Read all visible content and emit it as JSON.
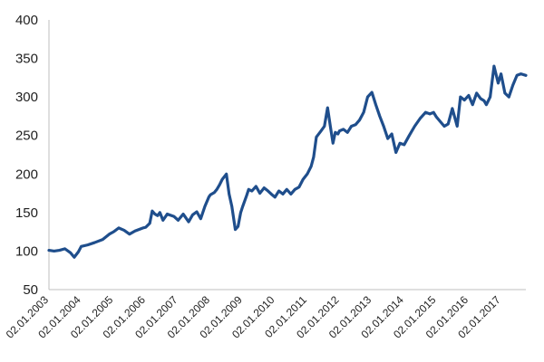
{
  "colors": {
    "series": "#1f4e8c",
    "axis": "#bfbfbf",
    "text": "#1f1f1f",
    "background": "#ffffff"
  },
  "chart_data": {
    "type": "line",
    "title": "",
    "xlabel": "",
    "ylabel": "",
    "ylim": [
      50,
      400
    ],
    "grid": false,
    "legend": "none",
    "y_ticks": [
      50,
      100,
      150,
      200,
      250,
      300,
      350,
      400
    ],
    "y_tick_labels": [
      "50",
      "100",
      "150",
      "200",
      "250",
      "300",
      "350",
      "400"
    ],
    "x_ticks": [
      "2003-01-02",
      "2004-01-02",
      "2005-01-02",
      "2006-01-02",
      "2007-01-02",
      "2008-01-02",
      "2009-01-02",
      "2010-01-02",
      "2011-01-02",
      "2012-01-02",
      "2013-01-02",
      "2014-01-02",
      "2015-01-02",
      "2016-01-02",
      "2017-01-02"
    ],
    "x_tick_labels": [
      "02.01.2003",
      "02.01.2004",
      "02.01.2005",
      "02.01.2006",
      "02.01.2007",
      "02.01.2008",
      "02.01.2009",
      "02.01.2010",
      "02.01.2011",
      "02.01.2012",
      "02.01.2013",
      "02.01.2014",
      "02.01.2015",
      "02.01.2016",
      "02.01.2017"
    ],
    "xlim": [
      "2003-01-02",
      "2017-10-10"
    ],
    "series": [
      {
        "x": [
          "2003-01-02",
          "2003-03-01",
          "2003-05-01",
          "2003-07-01",
          "2003-09-01",
          "2003-10-15",
          "2003-12-01",
          "2004-01-02",
          "2004-03-15",
          "2004-06-01",
          "2004-09-01",
          "2004-11-15",
          "2005-01-02",
          "2005-03-01",
          "2005-05-01",
          "2005-07-01",
          "2005-09-01",
          "2005-12-01",
          "2006-01-02",
          "2006-02-15",
          "2006-03-15",
          "2006-04-15",
          "2006-05-15",
          "2006-06-10",
          "2006-07-15",
          "2006-09-01",
          "2006-11-15",
          "2007-01-02",
          "2007-03-01",
          "2007-05-01",
          "2007-06-15",
          "2007-08-01",
          "2007-09-15",
          "2007-11-01",
          "2007-12-15",
          "2008-01-02",
          "2008-02-15",
          "2008-03-15",
          "2008-04-15",
          "2008-05-15",
          "2008-07-01",
          "2008-08-01",
          "2008-09-01",
          "2008-10-10",
          "2008-11-10",
          "2008-12-10",
          "2009-01-02",
          "2009-02-15",
          "2009-03-10",
          "2009-04-15",
          "2009-06-01",
          "2009-07-15",
          "2009-09-01",
          "2009-10-15",
          "2009-12-01",
          "2010-01-02",
          "2010-02-15",
          "2010-04-01",
          "2010-05-15",
          "2010-07-01",
          "2010-08-15",
          "2010-10-01",
          "2010-11-15",
          "2011-01-02",
          "2011-02-15",
          "2011-03-15",
          "2011-04-15",
          "2011-06-01",
          "2011-07-15",
          "2011-08-20",
          "2011-09-20",
          "2011-10-20",
          "2011-11-15",
          "2011-12-15",
          "2012-01-02",
          "2012-02-15",
          "2012-04-01",
          "2012-05-15",
          "2012-07-01",
          "2012-08-15",
          "2012-10-01",
          "2012-11-15",
          "2013-01-02",
          "2013-02-15",
          "2013-04-01",
          "2013-05-15",
          "2013-07-01",
          "2013-08-15",
          "2013-10-01",
          "2013-11-15",
          "2014-01-02",
          "2014-03-01",
          "2014-05-01",
          "2014-07-01",
          "2014-09-01",
          "2014-10-20",
          "2014-12-01",
          "2015-01-02",
          "2015-02-15",
          "2015-04-01",
          "2015-05-15",
          "2015-07-01",
          "2015-08-25",
          "2015-10-01",
          "2015-11-15",
          "2016-01-02",
          "2016-02-15",
          "2016-04-01",
          "2016-05-15",
          "2016-06-25",
          "2016-07-20",
          "2016-09-01",
          "2016-10-15",
          "2016-12-01",
          "2017-01-02",
          "2017-02-15",
          "2017-04-01",
          "2017-05-15",
          "2017-07-01",
          "2017-08-15",
          "2017-10-10"
        ],
        "values": [
          101,
          100,
          101,
          103,
          98,
          92,
          99,
          106,
          108,
          111,
          115,
          122,
          125,
          130,
          127,
          122,
          126,
          130,
          131,
          136,
          152,
          148,
          146,
          150,
          140,
          148,
          145,
          140,
          148,
          138,
          147,
          151,
          142,
          158,
          170,
          173,
          176,
          180,
          186,
          193,
          200,
          174,
          158,
          128,
          132,
          150,
          158,
          172,
          180,
          178,
          184,
          175,
          182,
          178,
          173,
          170,
          178,
          174,
          180,
          174,
          180,
          183,
          193,
          200,
          210,
          222,
          248,
          255,
          262,
          286,
          262,
          240,
          254,
          252,
          256,
          258,
          254,
          262,
          264,
          270,
          280,
          300,
          306,
          290,
          275,
          262,
          246,
          252,
          228,
          240,
          238,
          250,
          262,
          272,
          280,
          278,
          280,
          274,
          268,
          262,
          265,
          285,
          262,
          300,
          296,
          302,
          290,
          305,
          298,
          295,
          290,
          300,
          340,
          318,
          330,
          305,
          300,
          315,
          328,
          330,
          328
        ]
      }
    ]
  }
}
